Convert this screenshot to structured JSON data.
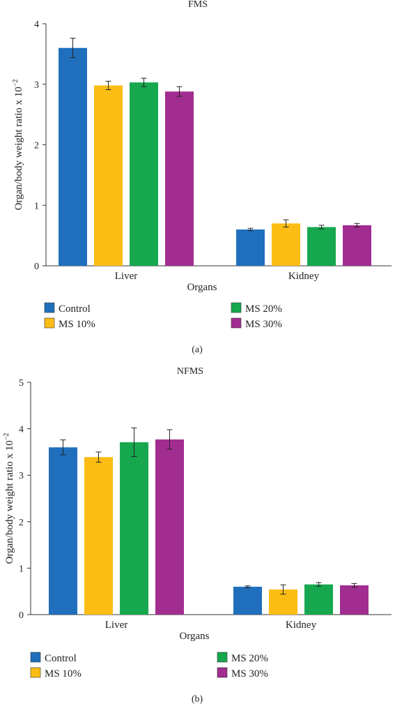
{
  "colors": {
    "control": "#1f6fbd",
    "ms10": "#fbbd14",
    "ms20": "#17a84f",
    "ms30": "#a22d91"
  },
  "chart_data": [
    {
      "type": "bar",
      "title": "FMS",
      "caption": "(a)",
      "xlabel": "Organs",
      "ylabel": "Organ/body weight ratio x 10",
      "ylabel_sup": "−2",
      "ylim": [
        0,
        4
      ],
      "yticks": [
        0,
        1,
        2,
        3,
        4
      ],
      "categories": [
        "Liver",
        "Kidney"
      ],
      "legend": "bottom",
      "grid": false,
      "series": [
        {
          "name": "Control",
          "color": "control",
          "values": [
            3.6,
            0.6
          ],
          "errors": [
            0.16,
            0.02
          ]
        },
        {
          "name": "MS 10%",
          "color": "ms10",
          "values": [
            2.98,
            0.7
          ],
          "errors": [
            0.07,
            0.06
          ]
        },
        {
          "name": "MS 20%",
          "color": "ms20",
          "values": [
            3.03,
            0.64
          ],
          "errors": [
            0.07,
            0.03
          ]
        },
        {
          "name": "MS 30%",
          "color": "ms30",
          "values": [
            2.88,
            0.67
          ],
          "errors": [
            0.08,
            0.03
          ]
        }
      ]
    },
    {
      "type": "bar",
      "title": "NFMS",
      "caption": "(b)",
      "xlabel": "Organs",
      "ylabel": "Organ/body weight ratio x 10",
      "ylabel_sup": "−2",
      "ylim": [
        0,
        5
      ],
      "yticks": [
        0,
        1,
        2,
        3,
        4,
        5
      ],
      "categories": [
        "Liver",
        "Kidney"
      ],
      "legend": "bottom",
      "grid": false,
      "series": [
        {
          "name": "Control",
          "color": "control",
          "values": [
            3.6,
            0.6
          ],
          "errors": [
            0.16,
            0.02
          ]
        },
        {
          "name": "MS 10%",
          "color": "ms10",
          "values": [
            3.39,
            0.54
          ],
          "errors": [
            0.11,
            0.1
          ]
        },
        {
          "name": "MS 20%",
          "color": "ms20",
          "values": [
            3.71,
            0.65
          ],
          "errors": [
            0.31,
            0.04
          ]
        },
        {
          "name": "MS 30%",
          "color": "ms30",
          "values": [
            3.77,
            0.63
          ],
          "errors": [
            0.21,
            0.04
          ]
        }
      ]
    }
  ]
}
